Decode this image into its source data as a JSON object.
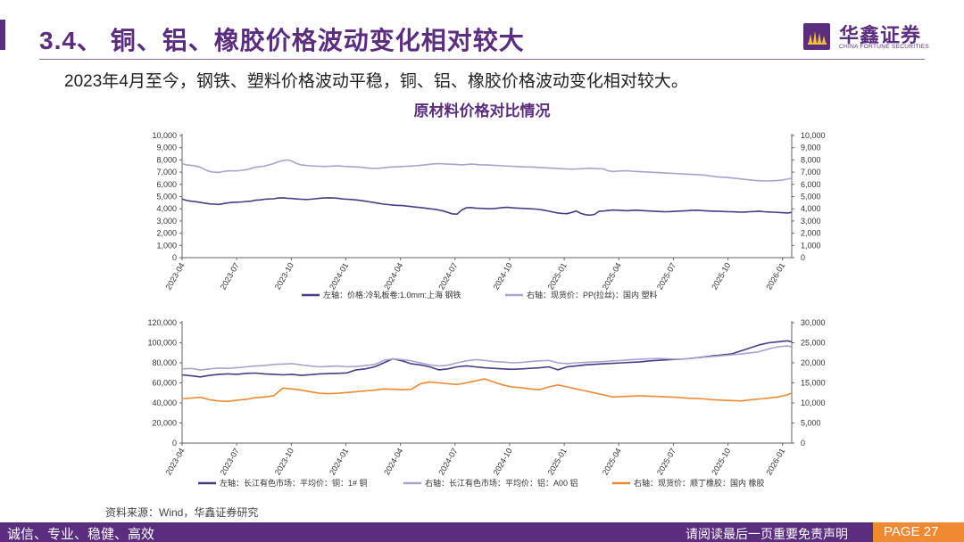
{
  "header": {
    "title": "3.4、 铜、铝、橡胶价格波动变化相对较大",
    "subtitle": "2023年4月至今，钢铁、塑料价格波动平稳，铜、铝、橡胶价格波动变化相对较大。",
    "chart_title": "原材料价格对比情况"
  },
  "logo": {
    "name_cn": "华鑫证券",
    "name_en": "CHINA FORTUNE SECURITIES"
  },
  "source": "资料来源：Wind，华鑫证券研究",
  "footer": {
    "left": "诚信、专业、稳健、高效",
    "right": "请阅读最后一页重要免责声明",
    "page": "PAGE 27"
  },
  "colors": {
    "brand": "#5b2d7e",
    "accent": "#f08a32",
    "steel": "#4b3a85",
    "plastic": "#a8a3d0",
    "copper": "#4b3a85",
    "aluminum": "#a8a3d0",
    "rubber": "#f08a32"
  },
  "chart_data": [
    {
      "type": "line",
      "x_ticks": [
        "2023-04",
        "2023-07",
        "2023-10",
        "2024-01",
        "2024-04",
        "2024-07",
        "2024-10",
        "2025-01",
        "2025-04",
        "2025-07",
        "2025-10",
        "2026-01"
      ],
      "y_left": {
        "ylim": [
          0,
          10000
        ],
        "ticks": [
          "0",
          "1,000",
          "2,000",
          "3,000",
          "4,000",
          "5,000",
          "6,000",
          "7,000",
          "8,000",
          "9,000",
          "10,000"
        ]
      },
      "y_right": {
        "ylim": [
          0,
          10000
        ],
        "ticks": [
          "0",
          "1,000",
          "2,000",
          "3,000",
          "4,000",
          "5,000",
          "6,000",
          "7,000",
          "8,000",
          "9,000",
          "10,000"
        ]
      },
      "series": [
        {
          "name": "左轴：价格:冷轧板卷:1.0mm:上海 钢铁",
          "axis": "left",
          "color": "#4b3a85",
          "x": [
            0,
            1,
            2,
            3,
            4,
            5,
            6,
            7,
            8,
            9,
            10,
            11,
            12,
            13,
            14,
            15,
            16,
            17,
            18,
            19,
            20,
            21,
            22,
            23,
            24,
            25,
            26,
            27,
            28,
            29,
            30,
            31,
            32,
            33,
            34,
            35,
            36,
            37,
            38,
            39,
            40,
            41,
            42,
            43,
            44,
            45,
            46,
            47,
            48,
            49,
            50,
            51,
            52,
            53,
            54,
            55,
            56,
            57,
            58,
            59,
            60,
            61,
            62,
            63,
            64,
            65,
            66,
            67,
            68,
            69,
            70,
            71,
            72,
            73,
            74,
            75,
            76,
            77,
            78,
            79,
            80,
            81,
            82,
            83,
            84,
            85,
            86,
            87,
            88,
            89,
            90,
            91,
            92,
            93,
            94,
            95,
            96,
            97,
            98,
            99,
            100,
            101,
            102,
            103,
            104,
            105,
            106,
            107,
            108,
            109,
            110,
            111,
            112,
            113,
            114,
            115,
            116,
            117,
            118,
            119,
            120,
            121,
            122,
            123,
            124,
            125,
            126,
            127,
            128,
            129,
            130,
            131,
            132,
            133
          ],
          "values": [
            4800,
            4680,
            4620,
            4580,
            4520,
            4460,
            4400,
            4380,
            4360,
            4420,
            4480,
            4520,
            4540,
            4560,
            4600,
            4620,
            4700,
            4720,
            4780,
            4800,
            4820,
            4880,
            4900,
            4860,
            4840,
            4800,
            4780,
            4760,
            4780,
            4820,
            4860,
            4880,
            4900,
            4880,
            4860,
            4800,
            4780,
            4760,
            4720,
            4680,
            4620,
            4560,
            4500,
            4440,
            4380,
            4340,
            4300,
            4280,
            4260,
            4220,
            4180,
            4140,
            4100,
            4060,
            4000,
            3960,
            3900,
            3820,
            3700,
            3580,
            3560,
            3900,
            4080,
            4100,
            4060,
            4040,
            4020,
            4000,
            4020,
            4060,
            4100,
            4120,
            4080,
            4060,
            4040,
            4020,
            4000,
            3980,
            3940,
            3880,
            3800,
            3720,
            3660,
            3620,
            3600,
            3700,
            3820,
            3620,
            3520,
            3480,
            3540,
            3800,
            3820,
            3860,
            3900,
            3880,
            3860,
            3840,
            3860,
            3880,
            3860,
            3840,
            3820,
            3800,
            3780,
            3760,
            3760,
            3780,
            3800,
            3820,
            3840,
            3860,
            3880,
            3860,
            3840,
            3820,
            3800,
            3800,
            3780,
            3760,
            3760,
            3740,
            3720,
            3740,
            3760,
            3780,
            3800,
            3760,
            3740,
            3720,
            3700,
            3680,
            3660,
            3700
          ]
        },
        {
          "name": "右轴：现货价：PP(拉丝)：国内 塑料",
          "axis": "right",
          "color": "#a8a3d0",
          "x": [
            0,
            1,
            2,
            3,
            4,
            5,
            6,
            7,
            8,
            9,
            10,
            11,
            12,
            13,
            14,
            15,
            16,
            17,
            18,
            19,
            20,
            21,
            22,
            23,
            24,
            25,
            26,
            27,
            28,
            29,
            30,
            31,
            32,
            33,
            34,
            35,
            36,
            37,
            38,
            39,
            40,
            41,
            42,
            43,
            44,
            45,
            46,
            47,
            48,
            49,
            50,
            51,
            52,
            53,
            54,
            55,
            56,
            57,
            58,
            59,
            60,
            61,
            62,
            63,
            64,
            65,
            66,
            67,
            68,
            69,
            70,
            71,
            72,
            73,
            74,
            75,
            76,
            77,
            78,
            79,
            80,
            81,
            82,
            83,
            84,
            85,
            86,
            87,
            88,
            89,
            90,
            91,
            92,
            93,
            94,
            95,
            96,
            97,
            98,
            99,
            100,
            101,
            102,
            103,
            104,
            105,
            106,
            107,
            108,
            109,
            110,
            111,
            112,
            113,
            114,
            115,
            116,
            117,
            118,
            119,
            120,
            121,
            122,
            123,
            124,
            125,
            126,
            127,
            128,
            129,
            130,
            131,
            132,
            133
          ],
          "values": [
            7700,
            7600,
            7550,
            7500,
            7400,
            7200,
            7050,
            7000,
            6980,
            7050,
            7100,
            7120,
            7100,
            7150,
            7200,
            7300,
            7400,
            7450,
            7500,
            7600,
            7700,
            7850,
            7950,
            8000,
            7900,
            7700,
            7600,
            7550,
            7520,
            7500,
            7480,
            7460,
            7480,
            7500,
            7520,
            7480,
            7460,
            7440,
            7420,
            7400,
            7360,
            7320,
            7300,
            7320,
            7360,
            7400,
            7420,
            7440,
            7460,
            7480,
            7500,
            7520,
            7560,
            7600,
            7640,
            7680,
            7700,
            7680,
            7660,
            7640,
            7620,
            7600,
            7620,
            7660,
            7640,
            7600,
            7600,
            7580,
            7560,
            7540,
            7520,
            7500,
            7480,
            7460,
            7440,
            7420,
            7420,
            7400,
            7380,
            7360,
            7340,
            7320,
            7300,
            7280,
            7260,
            7240,
            7260,
            7280,
            7300,
            7320,
            7300,
            7280,
            7260,
            7100,
            7050,
            7080,
            7100,
            7120,
            7080,
            7060,
            7040,
            7020,
            7000,
            6980,
            6960,
            6940,
            6920,
            6900,
            6880,
            6860,
            6840,
            6820,
            6800,
            6780,
            6760,
            6700,
            6650,
            6600,
            6580,
            6560,
            6520,
            6480,
            6440,
            6400,
            6360,
            6320,
            6300,
            6280,
            6280,
            6300,
            6320,
            6360,
            6420,
            6500
          ]
        }
      ]
    },
    {
      "type": "line",
      "x_ticks": [
        "2023-04",
        "2023-07",
        "2023-10",
        "2024-01",
        "2024-04",
        "2024-07",
        "2024-10",
        "2025-01",
        "2025-04",
        "2025-07",
        "2025-10",
        "2026-01"
      ],
      "y_left": {
        "ylim": [
          0,
          120000
        ],
        "ticks": [
          "0",
          "20,000",
          "40,000",
          "60,000",
          "80,000",
          "100,000",
          "120,000"
        ]
      },
      "y_right": {
        "ylim": [
          0,
          30000
        ],
        "ticks": [
          "0",
          "5,000",
          "10,000",
          "15,000",
          "20,000",
          "25,000",
          "30,000"
        ]
      },
      "series": [
        {
          "name": "左轴：长江有色市场：平均价：铜：1# 铜",
          "axis": "left",
          "color": "#4b3a85",
          "x": [
            0,
            2,
            4,
            6,
            8,
            10,
            12,
            14,
            16,
            18,
            20,
            22,
            24,
            26,
            28,
            30,
            32,
            34,
            36,
            38,
            40,
            42,
            44,
            46,
            48,
            50,
            52,
            54,
            56,
            58,
            60,
            62,
            64,
            66,
            68,
            70,
            72,
            74,
            76,
            78,
            80,
            82,
            84,
            86,
            88,
            90,
            92,
            94,
            96,
            98,
            100,
            102,
            104,
            106,
            108,
            110,
            112,
            114,
            116,
            118,
            120,
            122,
            124,
            126,
            128,
            130,
            132,
            133
          ],
          "values": [
            68000,
            67000,
            66000,
            67500,
            68500,
            69000,
            68500,
            69500,
            69800,
            69000,
            68500,
            68000,
            68500,
            67500,
            68200,
            69000,
            69200,
            69500,
            70000,
            73000,
            74000,
            76000,
            80000,
            84000,
            82000,
            79000,
            78000,
            76000,
            73000,
            74000,
            76000,
            77000,
            76000,
            75000,
            74500,
            74000,
            73500,
            74000,
            74500,
            75000,
            76000,
            73000,
            76000,
            77000,
            78000,
            78500,
            79000,
            79500,
            80000,
            80500,
            81000,
            82000,
            82500,
            83000,
            83500,
            84000,
            85000,
            86000,
            87000,
            88000,
            89000,
            92000,
            95000,
            98000,
            100000,
            101000,
            102000,
            101000
          ]
        },
        {
          "name": "右轴：长江有色市场：平均价：铝：A00 铝",
          "axis": "right",
          "color": "#a8a3d0",
          "x": [
            0,
            2,
            4,
            6,
            8,
            10,
            12,
            14,
            16,
            18,
            20,
            22,
            24,
            26,
            28,
            30,
            32,
            34,
            36,
            38,
            40,
            42,
            44,
            46,
            48,
            50,
            52,
            54,
            56,
            58,
            60,
            62,
            64,
            66,
            68,
            70,
            72,
            74,
            76,
            78,
            80,
            82,
            84,
            86,
            88,
            90,
            92,
            94,
            96,
            98,
            100,
            102,
            104,
            106,
            108,
            110,
            112,
            114,
            116,
            118,
            120,
            122,
            124,
            126,
            128,
            130,
            132,
            133
          ],
          "values": [
            18500,
            18600,
            18200,
            18500,
            18700,
            18600,
            18800,
            19000,
            19200,
            19300,
            19600,
            19700,
            19800,
            19500,
            19200,
            19000,
            19100,
            19200,
            19000,
            19100,
            19300,
            19600,
            20600,
            21000,
            20800,
            20500,
            20000,
            19500,
            19200,
            19400,
            20000,
            20500,
            20800,
            20600,
            20300,
            20200,
            20000,
            20100,
            20300,
            20500,
            20600,
            20000,
            19800,
            20000,
            20100,
            20200,
            20300,
            20500,
            20600,
            20800,
            20900,
            21000,
            21100,
            21000,
            20900,
            21000,
            21200,
            21400,
            21600,
            21800,
            22000,
            22200,
            22500,
            22800,
            23500,
            24000,
            24200,
            24000
          ]
        },
        {
          "name": "右轴：现货价：顺丁橡胶：国内 橡胶",
          "axis": "right",
          "color": "#f08a32",
          "x": [
            0,
            2,
            4,
            6,
            8,
            10,
            12,
            14,
            16,
            18,
            20,
            22,
            24,
            26,
            28,
            30,
            32,
            34,
            36,
            38,
            40,
            42,
            44,
            46,
            48,
            50,
            52,
            54,
            56,
            58,
            60,
            62,
            64,
            66,
            68,
            70,
            72,
            74,
            76,
            78,
            80,
            82,
            84,
            86,
            88,
            90,
            92,
            94,
            96,
            98,
            100,
            102,
            104,
            106,
            108,
            110,
            112,
            114,
            116,
            118,
            120,
            122,
            124,
            126,
            128,
            130,
            132,
            133
          ],
          "values": [
            11000,
            11200,
            11400,
            10800,
            10500,
            10400,
            10700,
            10900,
            11300,
            11500,
            11800,
            13700,
            13500,
            13200,
            12800,
            12400,
            12300,
            12400,
            12600,
            12800,
            13000,
            13200,
            13500,
            13400,
            13300,
            13400,
            14800,
            15200,
            15000,
            14800,
            14600,
            15000,
            15500,
            16000,
            15200,
            14500,
            14000,
            13800,
            13500,
            13300,
            14000,
            14500,
            14000,
            13500,
            13000,
            12500,
            12000,
            11500,
            11600,
            11700,
            11800,
            11700,
            11600,
            11500,
            11400,
            11200,
            11100,
            11000,
            10800,
            10700,
            10600,
            10500,
            10800,
            11000,
            11200,
            11500,
            12000,
            12500
          ]
        }
      ]
    }
  ]
}
